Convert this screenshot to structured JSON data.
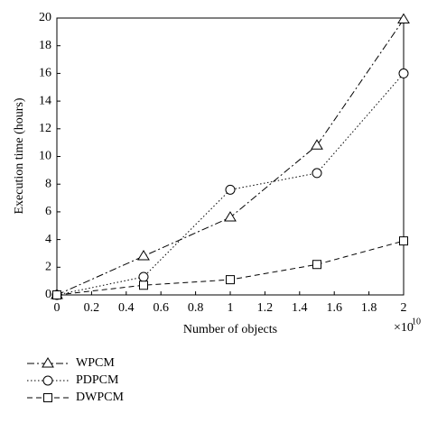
{
  "chart_data": {
    "type": "line",
    "xlabel": "Number of objects",
    "ylabel": "Execution time (hours)",
    "x_scale_base": "×10",
    "x_scale_exponent": "10",
    "x": [
      0,
      0.5,
      1,
      1.5,
      2
    ],
    "series": [
      {
        "name": "WPCM",
        "color": "#000000",
        "marker": "triangle",
        "dash": "dashdot",
        "values": [
          0,
          2.8,
          5.6,
          10.8,
          19.9
        ]
      },
      {
        "name": "PDPCM",
        "color": "#000000",
        "marker": "circle",
        "dash": "dotted",
        "values": [
          0,
          1.3,
          7.6,
          8.8,
          16
        ]
      },
      {
        "name": "DWPCM",
        "color": "#000000",
        "marker": "square",
        "dash": "dashed",
        "values": [
          0,
          0.7,
          1.1,
          2.2,
          3.9
        ]
      }
    ],
    "xlim": [
      0,
      2
    ],
    "xticks": [
      0,
      0.2,
      0.4,
      0.6,
      0.8,
      1,
      1.2,
      1.4,
      1.6,
      1.8,
      2
    ],
    "ylim": [
      0,
      20
    ],
    "yticks": [
      0,
      2,
      4,
      6,
      8,
      10,
      12,
      14,
      16,
      18,
      20
    ],
    "grid": false,
    "legend": "bottom-left"
  }
}
